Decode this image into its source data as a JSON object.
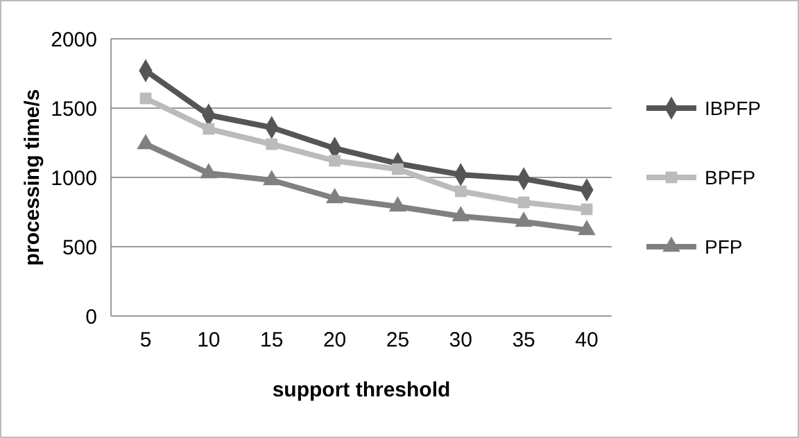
{
  "chart_data": {
    "type": "line",
    "xlabel": "support threshold",
    "ylabel": "processing time/s",
    "categories": [
      "5",
      "10",
      "15",
      "20",
      "25",
      "30",
      "35",
      "40"
    ],
    "ylim": [
      0,
      2000
    ],
    "yticks": [
      0,
      500,
      1000,
      1500,
      2000
    ],
    "grid": "y",
    "legend": "right",
    "series": [
      {
        "name": "IBPFP",
        "color": "#555555",
        "marker": "diamond",
        "values": [
          1770,
          1450,
          1360,
          1210,
          1100,
          1020,
          990,
          910
        ]
      },
      {
        "name": "BPFP",
        "color": "#bbbbbb",
        "marker": "square",
        "values": [
          1570,
          1350,
          1240,
          1120,
          1060,
          900,
          820,
          770
        ]
      },
      {
        "name": "PFP",
        "color": "#808080",
        "marker": "triangle",
        "values": [
          1240,
          1030,
          980,
          850,
          790,
          720,
          680,
          620
        ]
      }
    ]
  }
}
